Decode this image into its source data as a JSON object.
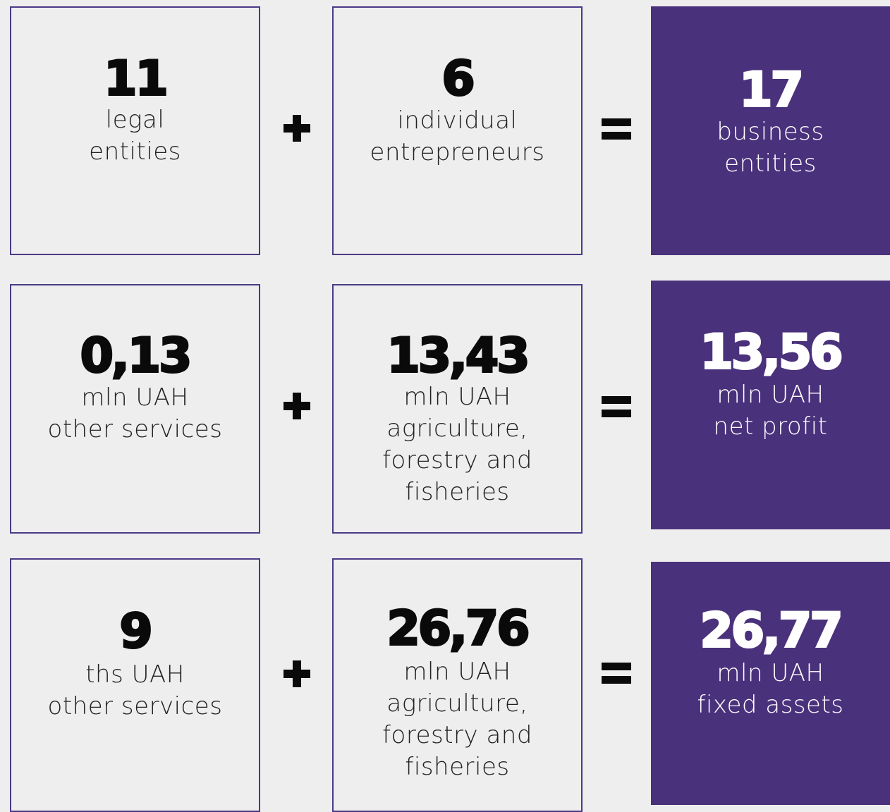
{
  "rows": [
    {
      "terms": [
        {
          "value": "11",
          "lines": [
            "legal",
            "entities"
          ]
        },
        {
          "value": "6",
          "lines": [
            "individual",
            "entrepreneurs"
          ]
        }
      ],
      "result": {
        "value": "17",
        "lines": [
          "business",
          "entities"
        ]
      }
    },
    {
      "terms": [
        {
          "value": "0,13",
          "lines": [
            "mln UAH",
            "other services"
          ]
        },
        {
          "value": "13,43",
          "lines": [
            "mln UAH",
            "agriculture,",
            "forestry and",
            "fisheries"
          ]
        }
      ],
      "result": {
        "value": "13,56",
        "lines": [
          "mln UAH",
          "net profit"
        ]
      }
    },
    {
      "terms": [
        {
          "value": "9",
          "lines": [
            "ths UAH",
            "other services"
          ]
        },
        {
          "value": "26,76",
          "lines": [
            "mln UAH",
            "agriculture,",
            "forestry and",
            "fisheries"
          ]
        }
      ],
      "result": {
        "value": "26,77",
        "lines": [
          "mln UAH",
          "fixed assets"
        ]
      }
    }
  ]
}
